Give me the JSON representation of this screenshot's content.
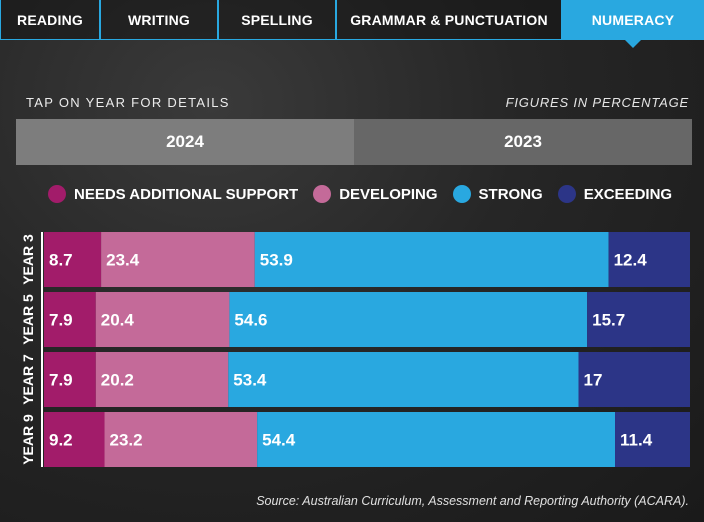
{
  "tabs": [
    {
      "label": "READING",
      "active": false
    },
    {
      "label": "WRITING",
      "active": false
    },
    {
      "label": "SPELLING",
      "active": false
    },
    {
      "label": "GRAMMAR & PUNCTUATION",
      "active": false
    },
    {
      "label": "NUMERACY",
      "active": true
    }
  ],
  "header": {
    "hint": "TAP ON YEAR FOR DETAILS",
    "units": "FIGURES IN PERCENTAGE"
  },
  "year_tabs": [
    {
      "label": "2024",
      "active": true
    },
    {
      "label": "2023",
      "active": false
    }
  ],
  "colors": {
    "accent": "#29a8e0",
    "needs_support": "#a21c6a",
    "developing": "#c46a99",
    "strong": "#29a8e0",
    "exceeding": "#2c3587"
  },
  "chart_data": {
    "type": "bar",
    "orientation": "horizontal",
    "stacked": true,
    "title": "NUMERACY 2024",
    "categories": [
      "YEAR 3",
      "YEAR 5",
      "YEAR 7",
      "YEAR 9"
    ],
    "series": [
      {
        "name": "NEEDS ADDITIONAL SUPPORT",
        "color": "#a21c6a",
        "values": [
          8.7,
          7.9,
          7.9,
          9.2
        ]
      },
      {
        "name": "DEVELOPING",
        "color": "#c46a99",
        "values": [
          23.4,
          20.4,
          20.2,
          23.2
        ]
      },
      {
        "name": "STRONG",
        "color": "#29a8e0",
        "values": [
          53.9,
          54.6,
          53.4,
          54.4
        ]
      },
      {
        "name": "EXCEEDING",
        "color": "#2c3587",
        "values": [
          12.4,
          15.7,
          17,
          11.4
        ]
      }
    ],
    "value_labels": [
      [
        "8.7",
        "23.4",
        "53.9",
        "12.4"
      ],
      [
        "7.9",
        "20.4",
        "54.6",
        "15.7"
      ],
      [
        "7.9",
        "20.2",
        "53.4",
        "17"
      ],
      [
        "9.2",
        "23.2",
        "54.4",
        "11.4"
      ]
    ],
    "legend_position": "top",
    "units": "%"
  },
  "source": "Source: Australian Curriculum, Assessment and Reporting Authority (ACARA)."
}
